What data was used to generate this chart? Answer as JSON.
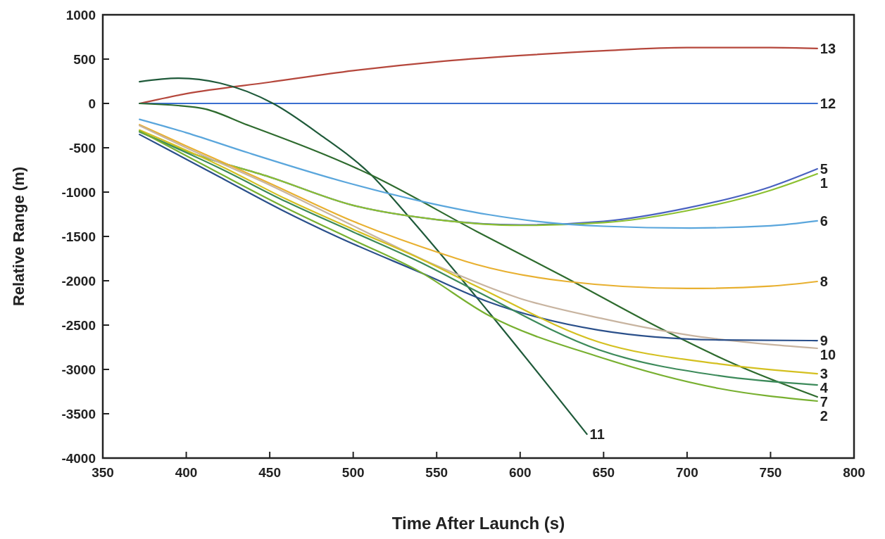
{
  "chart_data": {
    "type": "line",
    "xlabel": "Time After Launch (s)",
    "ylabel": "Relative Range (m)",
    "xlim": [
      350,
      800
    ],
    "xticks": [
      350,
      400,
      450,
      500,
      550,
      600,
      650,
      700,
      750,
      800
    ],
    "ylim": [
      -4000,
      1000
    ],
    "yticks": [
      -4000,
      -3500,
      -3000,
      -2500,
      -2000,
      -1500,
      -1000,
      -500,
      0,
      500,
      1000
    ],
    "grid": false,
    "marker": "none",
    "line_style": "solid",
    "series": [
      {
        "name": "13",
        "color": "#b5473c",
        "x": [
          372,
          400,
          450,
          500,
          550,
          600,
          650,
          700,
          750,
          778
        ],
        "values": [
          0,
          110,
          240,
          370,
          470,
          540,
          595,
          630,
          630,
          620
        ]
      },
      {
        "name": "12",
        "color": "#3a6fd0",
        "x": [
          372,
          778
        ],
        "values": [
          0,
          0
        ]
      },
      {
        "name": "11",
        "color": "#1f5a3a",
        "x": [
          372,
          395,
          420,
          452,
          480,
          511,
          532,
          581,
          640
        ],
        "values": [
          245,
          285,
          230,
          0,
          -350,
          -810,
          -1250,
          -2349,
          -3730
        ]
      },
      {
        "name": "7",
        "color": "#2e6b2e",
        "x": [
          372,
          408,
          437,
          511,
          574,
          626,
          686,
          728,
          778
        ],
        "values": [
          0,
          -50,
          -245,
          -810,
          -1444,
          -1952,
          -2556,
          -2937,
          -3310
        ]
      },
      {
        "name": "5",
        "color": "#4a62c0",
        "x": [
          372,
          400,
          450,
          500,
          550,
          600,
          650,
          700,
          750,
          778
        ],
        "values": [
          -320,
          -540,
          -830,
          -1150,
          -1310,
          -1370,
          -1330,
          -1180,
          -940,
          -738
        ]
      },
      {
        "name": "1",
        "color": "#8cc030",
        "x": [
          372,
          400,
          450,
          500,
          550,
          600,
          650,
          700,
          750,
          778
        ],
        "values": [
          -320,
          -540,
          -830,
          -1150,
          -1310,
          -1375,
          -1345,
          -1210,
          -980,
          -794
        ]
      },
      {
        "name": "6",
        "color": "#5aa6dc",
        "x": [
          372,
          400,
          437,
          497,
          540,
          581,
          610,
          650,
          702,
          750,
          778
        ],
        "values": [
          -180,
          -330,
          -556,
          -897,
          -1100,
          -1254,
          -1330,
          -1385,
          -1405,
          -1380,
          -1325
        ]
      },
      {
        "name": "8",
        "color": "#e8b030",
        "x": [
          372,
          400,
          450,
          500,
          555,
          574,
          628,
          700,
          750,
          778
        ],
        "values": [
          -240,
          -480,
          -900,
          -1330,
          -1706,
          -1817,
          -2008,
          -2087,
          -2060,
          -2008
        ]
      },
      {
        "name": "10",
        "color": "#c8b4a0",
        "x": [
          372,
          400,
          450,
          500,
          550,
          600,
          650,
          700,
          750,
          778
        ],
        "values": [
          -250,
          -500,
          -920,
          -1380,
          -1830,
          -2200,
          -2430,
          -2610,
          -2720,
          -2762
        ]
      },
      {
        "name": "9",
        "color": "#2a4f8a",
        "x": [
          372,
          420,
          457,
          490,
          542,
          581,
          647,
          719,
          778
        ],
        "values": [
          -350,
          -830,
          -1200,
          -1500,
          -1921,
          -2238,
          -2556,
          -2667,
          -2675
        ]
      },
      {
        "name": "3",
        "color": "#d4c020",
        "x": [
          372,
          420,
          460,
          500,
          540,
          574,
          647,
          719,
          778
        ],
        "values": [
          -300,
          -700,
          -1080,
          -1420,
          -1750,
          -2063,
          -2690,
          -2937,
          -3048
        ]
      },
      {
        "name": "4",
        "color": "#3c8a5a",
        "x": [
          372,
          420,
          460,
          500,
          540,
          574,
          647,
          719,
          778
        ],
        "values": [
          -320,
          -730,
          -1110,
          -1450,
          -1790,
          -2119,
          -2778,
          -3071,
          -3175
        ]
      },
      {
        "name": "2",
        "color": "#78b030",
        "x": [
          372,
          420,
          460,
          500,
          540,
          581,
          647,
          719,
          778
        ],
        "values": [
          -310,
          -790,
          -1180,
          -1540,
          -1900,
          -2389,
          -2857,
          -3214,
          -3357
        ]
      }
    ]
  }
}
